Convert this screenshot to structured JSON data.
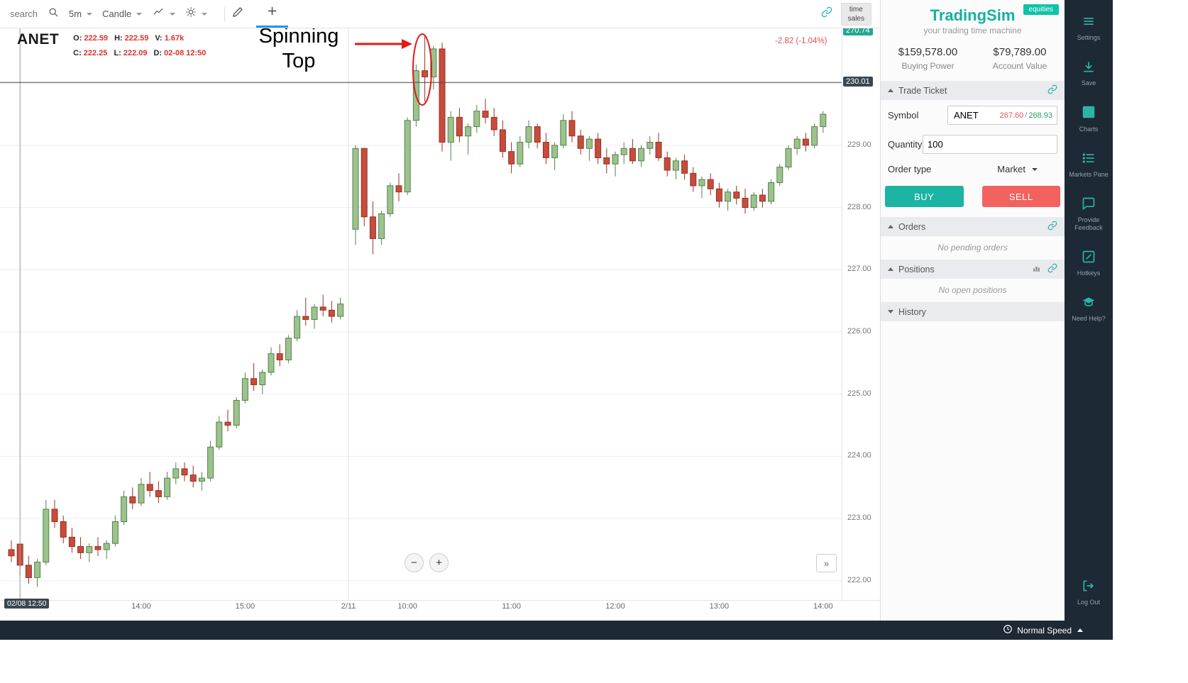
{
  "toolbar": {
    "search_placeholder": "search",
    "interval": "5m",
    "chart_type": "Candle",
    "time_sales": {
      "line1": "time",
      "line2": "sales"
    }
  },
  "chart": {
    "symbol": "ANET",
    "legend": {
      "o_label": "O:",
      "o": "222.59",
      "h_label": "H:",
      "h": "222.59",
      "v_label": "V:",
      "v": "1.67k",
      "c_label": "C:",
      "c": "222.25",
      "l_label": "L:",
      "l": "222.09",
      "d_label": "D:",
      "d": "02-08 12:50"
    },
    "change": "-2.82 (-1.04%)",
    "top_badge": "270.74",
    "cross_badge": "230.01",
    "time_badge": "02/08 12:50",
    "annotation_text": "Spinning Top",
    "zoom_out": "−",
    "zoom_in": "+",
    "expand": "»"
  },
  "chart_data": {
    "type": "candlestick",
    "symbol": "ANET",
    "interval": "5m",
    "ylim": [
      221.69,
      230.88
    ],
    "y_ticks": [
      {
        "v": 222,
        "label": "222.00"
      },
      {
        "v": 223,
        "label": "223.00"
      },
      {
        "v": 224,
        "label": "224.00"
      },
      {
        "v": 225,
        "label": "225.00"
      },
      {
        "v": 226,
        "label": "226.00"
      },
      {
        "v": 227,
        "label": "227.00"
      },
      {
        "v": 228,
        "label": "228.00"
      },
      {
        "v": 229,
        "label": "229.00"
      }
    ],
    "x_ticks": [
      {
        "label": "13:00",
        "session": 0,
        "index": 3
      },
      {
        "label": "14:00",
        "session": 0,
        "index": 15
      },
      {
        "label": "15:00",
        "session": 0,
        "index": 27
      },
      {
        "label": "2/11",
        "divider": true
      },
      {
        "label": "10:00",
        "session": 1,
        "index": 6
      },
      {
        "label": "11:00",
        "session": 1,
        "index": 18
      },
      {
        "label": "12:00",
        "session": 1,
        "index": 30
      },
      {
        "label": "13:00",
        "session": 1,
        "index": 42
      },
      {
        "label": "14:00",
        "session": 1,
        "index": 54
      }
    ],
    "crosshair": {
      "price": 230.01,
      "session": 0,
      "index": 1,
      "time": "02/08 12:50"
    },
    "colors": {
      "up_fill": "#9cc28e",
      "up_border": "#55824a",
      "down_fill": "#c64c3c",
      "down_border": "#9a3024"
    },
    "annotation": {
      "text": "Spinning Top",
      "session": 1,
      "index": 8
    },
    "sessions": [
      {
        "date": "02/08",
        "candles": [
          [
            "12:45",
            222.5,
            222.65,
            222.3,
            222.4
          ],
          [
            "12:50",
            222.59,
            222.59,
            222.09,
            222.25
          ],
          [
            "12:55",
            222.25,
            222.4,
            221.95,
            222.05
          ],
          [
            "13:00",
            222.05,
            222.35,
            221.9,
            222.3
          ],
          [
            "13:05",
            222.3,
            223.3,
            222.25,
            223.15
          ],
          [
            "13:10",
            223.15,
            223.3,
            222.85,
            222.95
          ],
          [
            "13:15",
            222.95,
            223.05,
            222.6,
            222.7
          ],
          [
            "13:20",
            222.7,
            222.85,
            222.45,
            222.55
          ],
          [
            "13:25",
            222.55,
            222.7,
            222.35,
            222.45
          ],
          [
            "13:30",
            222.45,
            222.6,
            222.3,
            222.55
          ],
          [
            "13:35",
            222.55,
            222.7,
            222.4,
            222.5
          ],
          [
            "13:40",
            222.5,
            222.65,
            222.35,
            222.6
          ],
          [
            "13:45",
            222.6,
            223.05,
            222.55,
            222.95
          ],
          [
            "13:50",
            222.95,
            223.45,
            222.9,
            223.35
          ],
          [
            "13:55",
            223.35,
            223.5,
            223.15,
            223.25
          ],
          [
            "14:00",
            223.25,
            223.65,
            223.2,
            223.55
          ],
          [
            "14:05",
            223.55,
            223.75,
            223.35,
            223.45
          ],
          [
            "14:10",
            223.45,
            223.6,
            223.25,
            223.35
          ],
          [
            "14:15",
            223.35,
            223.75,
            223.3,
            223.65
          ],
          [
            "14:20",
            223.65,
            223.9,
            223.55,
            223.8
          ],
          [
            "14:25",
            223.8,
            223.9,
            223.6,
            223.7
          ],
          [
            "14:30",
            223.7,
            223.85,
            223.5,
            223.6
          ],
          [
            "14:35",
            223.6,
            223.75,
            223.45,
            223.65
          ],
          [
            "14:40",
            223.65,
            224.25,
            223.6,
            224.15
          ],
          [
            "14:45",
            224.15,
            224.65,
            224.1,
            224.55
          ],
          [
            "14:50",
            224.55,
            224.75,
            224.4,
            224.5
          ],
          [
            "14:55",
            224.5,
            224.95,
            224.45,
            224.9
          ],
          [
            "15:00",
            224.9,
            225.35,
            224.85,
            225.25
          ],
          [
            "15:05",
            225.25,
            225.5,
            225.05,
            225.15
          ],
          [
            "15:10",
            225.15,
            225.4,
            225.0,
            225.35
          ],
          [
            "15:15",
            225.35,
            225.75,
            225.3,
            225.65
          ],
          [
            "15:20",
            225.65,
            225.8,
            225.45,
            225.55
          ],
          [
            "15:25",
            225.55,
            225.95,
            225.5,
            225.9
          ],
          [
            "15:30",
            225.9,
            226.35,
            225.85,
            226.25
          ],
          [
            "15:35",
            226.25,
            226.55,
            226.1,
            226.2
          ],
          [
            "15:40",
            226.2,
            226.45,
            226.05,
            226.4
          ],
          [
            "15:45",
            226.4,
            226.6,
            226.25,
            226.35
          ],
          [
            "15:50",
            226.35,
            226.5,
            226.15,
            226.25
          ],
          [
            "15:55",
            226.25,
            226.55,
            226.2,
            226.45
          ]
        ]
      },
      {
        "date": "02/11",
        "candles": [
          [
            "09:30",
            227.65,
            229.0,
            227.4,
            228.95
          ],
          [
            "09:35",
            228.95,
            228.95,
            227.7,
            227.85
          ],
          [
            "09:40",
            227.85,
            228.1,
            227.25,
            227.5
          ],
          [
            "09:45",
            227.5,
            227.95,
            227.4,
            227.9
          ],
          [
            "09:50",
            227.9,
            228.4,
            227.85,
            228.35
          ],
          [
            "09:55",
            228.35,
            228.55,
            228.1,
            228.25
          ],
          [
            "10:00",
            228.25,
            229.45,
            228.2,
            229.4
          ],
          [
            "10:05",
            229.4,
            230.3,
            229.3,
            230.2
          ],
          [
            "10:10",
            230.2,
            230.75,
            229.7,
            230.1
          ],
          [
            "10:15",
            230.1,
            230.6,
            229.9,
            230.55
          ],
          [
            "10:20",
            230.55,
            230.65,
            228.9,
            229.05
          ],
          [
            "10:25",
            229.05,
            229.55,
            228.75,
            229.45
          ],
          [
            "10:30",
            229.45,
            229.6,
            229.05,
            229.15
          ],
          [
            "10:35",
            229.15,
            229.35,
            228.85,
            229.3
          ],
          [
            "10:40",
            229.3,
            229.65,
            229.2,
            229.55
          ],
          [
            "10:45",
            229.55,
            229.75,
            229.35,
            229.45
          ],
          [
            "10:50",
            229.45,
            229.6,
            229.15,
            229.25
          ],
          [
            "10:55",
            229.25,
            229.4,
            228.8,
            228.9
          ],
          [
            "11:00",
            228.9,
            229.05,
            228.55,
            228.7
          ],
          [
            "11:05",
            228.7,
            229.15,
            228.65,
            229.05
          ],
          [
            "11:10",
            229.05,
            229.4,
            228.95,
            229.3
          ],
          [
            "11:15",
            229.3,
            229.35,
            228.95,
            229.05
          ],
          [
            "11:20",
            229.05,
            229.2,
            228.7,
            228.8
          ],
          [
            "11:25",
            228.8,
            229.05,
            228.6,
            229.0
          ],
          [
            "11:30",
            229.0,
            229.5,
            228.95,
            229.4
          ],
          [
            "11:35",
            229.4,
            229.55,
            229.05,
            229.15
          ],
          [
            "11:40",
            229.15,
            229.25,
            228.85,
            228.95
          ],
          [
            "11:45",
            228.95,
            229.15,
            228.75,
            229.1
          ],
          [
            "11:50",
            229.1,
            229.2,
            228.7,
            228.8
          ],
          [
            "11:55",
            228.8,
            228.95,
            228.55,
            228.7
          ],
          [
            "12:00",
            228.7,
            228.9,
            228.5,
            228.85
          ],
          [
            "12:05",
            228.85,
            229.05,
            228.7,
            228.95
          ],
          [
            "12:10",
            228.95,
            229.1,
            228.7,
            228.75
          ],
          [
            "12:15",
            228.75,
            229.0,
            228.65,
            228.95
          ],
          [
            "12:20",
            228.95,
            229.15,
            228.85,
            229.05
          ],
          [
            "12:25",
            229.05,
            229.2,
            228.75,
            228.8
          ],
          [
            "12:30",
            228.8,
            228.9,
            228.5,
            228.6
          ],
          [
            "12:35",
            228.6,
            228.8,
            228.45,
            228.75
          ],
          [
            "12:40",
            228.75,
            228.85,
            228.45,
            228.55
          ],
          [
            "12:45",
            228.55,
            228.65,
            228.25,
            228.35
          ],
          [
            "12:50",
            228.35,
            228.5,
            228.15,
            228.45
          ],
          [
            "12:55",
            228.45,
            228.55,
            228.2,
            228.3
          ],
          [
            "13:00",
            228.3,
            228.4,
            228.0,
            228.1
          ],
          [
            "13:05",
            228.1,
            228.3,
            227.95,
            228.25
          ],
          [
            "13:10",
            228.25,
            228.35,
            228.05,
            228.15
          ],
          [
            "13:15",
            228.15,
            228.3,
            227.9,
            228.0
          ],
          [
            "13:20",
            228.0,
            228.25,
            227.95,
            228.2
          ],
          [
            "13:25",
            228.2,
            228.3,
            228.0,
            228.1
          ],
          [
            "13:30",
            228.1,
            228.45,
            228.05,
            228.4
          ],
          [
            "13:35",
            228.4,
            228.7,
            228.35,
            228.65
          ],
          [
            "13:40",
            228.65,
            229.0,
            228.6,
            228.95
          ],
          [
            "13:45",
            228.95,
            229.15,
            228.85,
            229.1
          ],
          [
            "13:50",
            229.1,
            229.2,
            228.9,
            229.0
          ],
          [
            "13:55",
            229.0,
            229.35,
            228.95,
            229.3
          ],
          [
            "14:00",
            229.3,
            229.55,
            229.2,
            229.5
          ]
        ]
      }
    ]
  },
  "panel": {
    "brand": "TradingSim",
    "badge": "equities",
    "tagline": "your trading time machine",
    "buying_power": {
      "value": "$159,578.00",
      "label": "Buying Power"
    },
    "account_value": {
      "value": "$79,789.00",
      "label": "Account Value"
    },
    "trade_ticket": {
      "title": "Trade Ticket",
      "symbol_label": "Symbol",
      "symbol_value": "ANET",
      "bid": "267.60",
      "sep": "/",
      "ask": "268.93",
      "quantity_label": "Quantity",
      "quantity_value": "100",
      "order_type_label": "Order type",
      "order_type_value": "Market",
      "buy": "BUY",
      "sell": "SELL"
    },
    "orders": {
      "title": "Orders",
      "empty": "No pending orders"
    },
    "positions": {
      "title": "Positions",
      "empty": "No open positions"
    },
    "history": {
      "title": "History"
    }
  },
  "rail": {
    "items": [
      {
        "label": "Settings"
      },
      {
        "label": "Save"
      },
      {
        "label": "Charts"
      },
      {
        "label": "Markets Pane"
      },
      {
        "label": "Provide Feedback"
      },
      {
        "label": "Hotkeys"
      },
      {
        "label": "Need Help?"
      }
    ],
    "logout_label": "Log Out"
  },
  "bottom": {
    "speed": "Normal Speed"
  }
}
